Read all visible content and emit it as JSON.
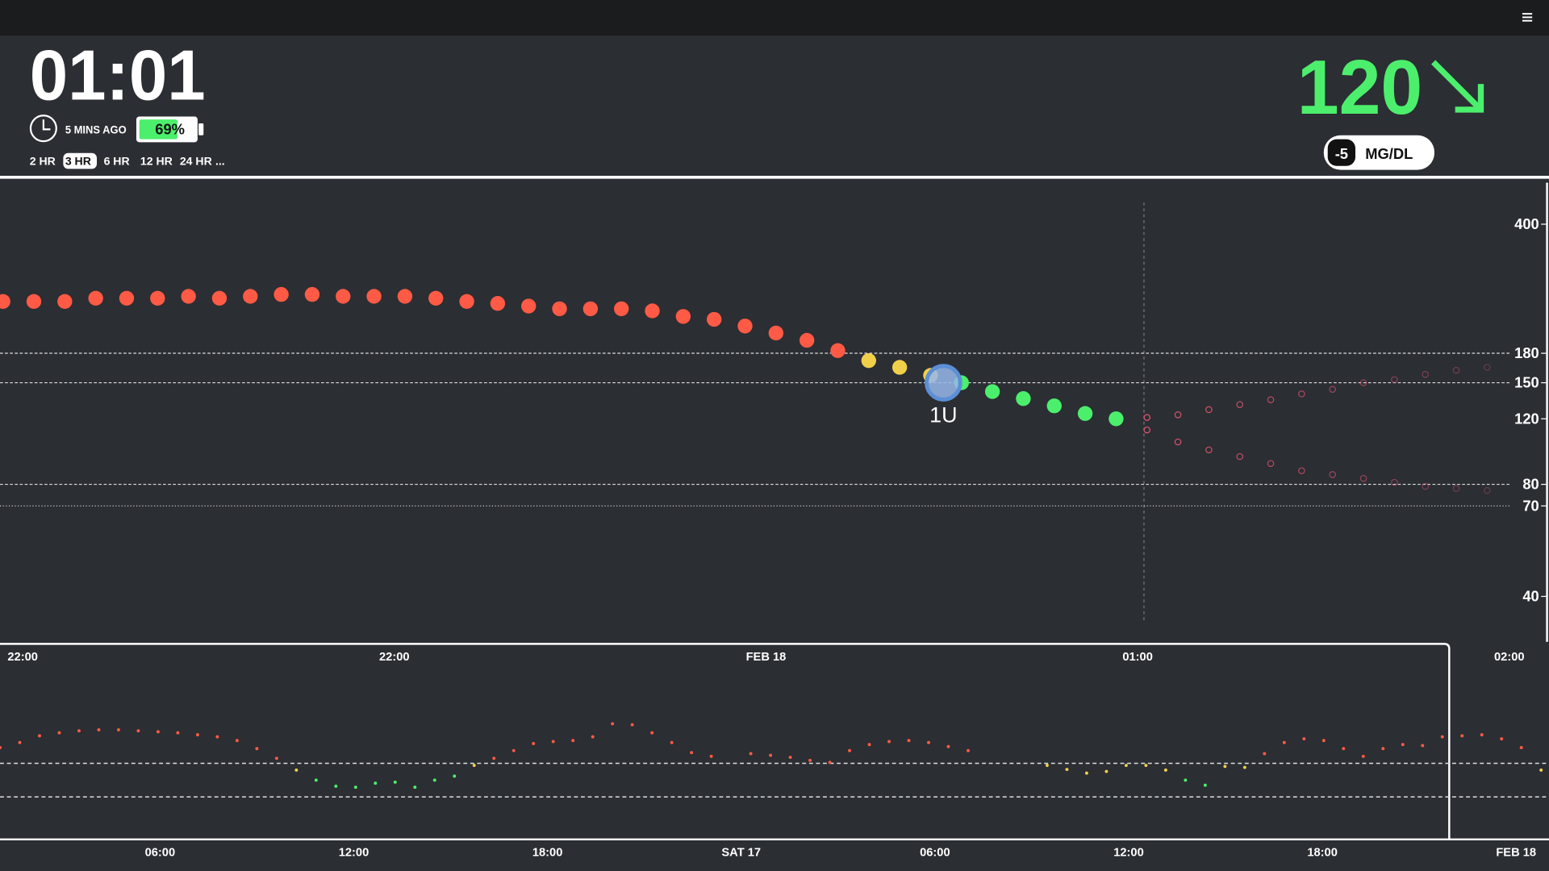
{
  "header": {
    "clock": "01:01",
    "last_reading": "5 MINS AGO",
    "battery": {
      "value": 69,
      "label": "69%"
    },
    "ranges": [
      "2 HR",
      "3 HR",
      "6 HR",
      "12 HR",
      "24 HR",
      "..."
    ],
    "selected_range": 1
  },
  "current": {
    "value": 120,
    "delta": -5,
    "units": "MG/DL",
    "color": "#4cef6c"
  },
  "colors": {
    "high": "#ff5a45",
    "warn": "#f0d04a",
    "in_range": "#4cef6c",
    "prediction": "#e0566f",
    "treatment": "#5b8fd6"
  },
  "chart_data": [
    {
      "type": "dot",
      "scale": "log",
      "ylim": [
        30,
        500
      ],
      "yticks": [
        40,
        70,
        80,
        120,
        150,
        180,
        400
      ],
      "grid_lines": [
        {
          "value": 180,
          "role": "high",
          "dash": "3 2"
        },
        {
          "value": 150,
          "role": "target",
          "dash": "3 2"
        },
        {
          "value": 80,
          "role": "low",
          "dash": "3 2"
        },
        {
          "value": 70,
          "role": "urgent-low",
          "dash": "1 2"
        }
      ],
      "x_labels": [
        "22:00",
        "22:00",
        "FEB 18",
        "01:00",
        "02:00"
      ],
      "series": [
        {
          "style": "reading",
          "values": [
            248,
            248,
            248,
            253,
            253,
            253,
            256,
            253,
            256,
            259,
            259,
            256,
            256,
            256,
            253,
            248,
            245,
            241,
            237,
            237,
            237,
            234,
            226,
            222,
            213,
            204,
            195,
            183,
            172,
            165,
            157,
            150,
            142,
            136,
            130,
            124,
            120
          ]
        },
        {
          "style": "prediction",
          "values": [
            121,
            123,
            127,
            131,
            135,
            140,
            144,
            150,
            153,
            158,
            162,
            165
          ]
        },
        {
          "style": "prediction",
          "values": [
            112,
            104,
            99,
            95,
            91,
            87,
            85,
            83,
            81,
            79,
            78,
            77
          ]
        }
      ],
      "treatment": {
        "label": "1U",
        "value": 150
      }
    },
    {
      "type": "dot",
      "scale": "linear",
      "ylim": [
        0,
        500
      ],
      "grid_lines": [
        {
          "value": 180,
          "dash": "4 3"
        },
        {
          "value": 80,
          "dash": "4 3"
        }
      ],
      "x_labels": [
        "06:00",
        "12:00",
        "18:00",
        "SAT 17",
        "06:00",
        "12:00",
        "18:00",
        "FEB 18"
      ],
      "values": [
        227,
        242,
        262,
        271,
        277,
        280,
        280,
        277,
        274,
        271,
        265,
        259,
        248,
        224,
        195,
        160,
        130,
        112,
        109,
        121,
        124,
        109,
        130,
        142,
        174,
        195,
        218,
        239,
        245,
        248,
        259,
        298,
        295,
        271,
        242,
        212,
        201,
        null,
        209,
        204,
        198,
        189,
        183,
        218,
        236,
        245,
        248,
        242,
        230,
        218,
        null,
        null,
        null,
        174,
        162,
        151,
        156,
        174,
        174,
        160,
        130,
        115,
        171,
        168,
        209,
        242,
        253,
        248,
        224,
        201,
        224,
        236,
        233,
        259,
        262,
        265,
        253,
        227,
        160
      ]
    }
  ]
}
